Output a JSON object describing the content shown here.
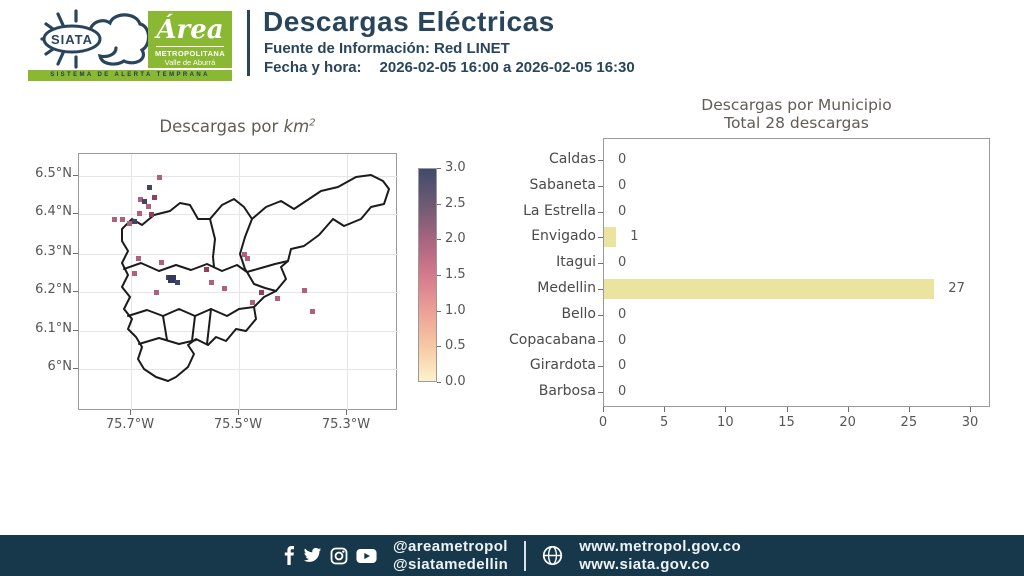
{
  "header": {
    "siata_logo_text": "SIATA",
    "siata_tagline": "SISTEMA DE ALERTA TEMPRANA",
    "area_logo": {
      "line1": "Área",
      "line2": "METROPOLITANA",
      "line3": "Valle de Aburrá"
    },
    "title": "Descargas Eléctricas",
    "source_line": "Fuente de Información: Red LINET",
    "datetime_label": "Fecha y hora:",
    "datetime_value": "2026-02-05 16:00 a 2026-02-05 16:30"
  },
  "colors": {
    "accent_navy": "#29455c",
    "brand_green": "#8ab832",
    "bar_yellow": "#eae4a0",
    "footer_navy": "#16384a",
    "point_pink": "#b0607c",
    "point_red": "#8f3f60",
    "point_dark": "#3f4566"
  },
  "chart_data": [
    {
      "type": "heatmap",
      "title_prefix": "Descargas por ",
      "title_unit_base": "km",
      "title_unit_exp": "2",
      "yticks": [
        "6.5°N",
        "6.4°N",
        "6.3°N",
        "6.2°N",
        "6.1°N",
        "6°N"
      ],
      "xticks": [
        "75.7°W",
        "75.5°W",
        "75.3°W"
      ],
      "colorbar": {
        "min": 0.0,
        "max": 3.0,
        "ticks": [
          "3.0",
          "2.5",
          "2.0",
          "1.5",
          "1.0",
          "0.5",
          "0.0"
        ]
      },
      "points": [
        [
          80,
          23,
          "p"
        ],
        [
          70,
          33,
          "d"
        ],
        [
          61,
          45,
          "p"
        ],
        [
          65,
          47,
          "d"
        ],
        [
          75,
          43,
          "r"
        ],
        [
          69,
          52,
          "p"
        ],
        [
          60,
          59,
          "p"
        ],
        [
          72,
          60,
          "r"
        ],
        [
          35,
          65,
          "p"
        ],
        [
          43,
          65,
          "p"
        ],
        [
          55,
          67,
          "d"
        ],
        [
          50,
          69,
          "p"
        ],
        [
          165,
          100,
          "p"
        ],
        [
          168,
          104,
          "p"
        ],
        [
          59,
          104,
          "p"
        ],
        [
          82,
          108,
          "p"
        ],
        [
          127,
          115,
          "r"
        ],
        [
          55,
          119,
          "p"
        ],
        [
          89,
          123,
          "d"
        ],
        [
          93,
          125,
          "D"
        ],
        [
          98,
          128,
          "d"
        ],
        [
          132,
          128,
          "p"
        ],
        [
          145,
          134,
          "p"
        ],
        [
          77,
          138,
          "p"
        ],
        [
          182,
          138,
          "r"
        ],
        [
          198,
          144,
          "p"
        ],
        [
          225,
          136,
          "p"
        ],
        [
          173,
          148,
          "p"
        ],
        [
          233,
          157,
          "p"
        ]
      ]
    },
    {
      "type": "bar",
      "orientation": "horizontal",
      "title": "Descargas por Municipio",
      "subtitle": "Total 28 descargas",
      "total": 28,
      "categories": [
        "Caldas",
        "Sabaneta",
        "La Estrella",
        "Envigado",
        "Itagui",
        "Medellin",
        "Bello",
        "Copacabana",
        "Girardota",
        "Barbosa"
      ],
      "values": [
        0,
        0,
        0,
        1,
        0,
        27,
        0,
        0,
        0,
        0
      ],
      "xticks": [
        0,
        5,
        10,
        15,
        20,
        25,
        30
      ],
      "xlim": [
        0,
        31.6
      ],
      "legend": null,
      "grid": false
    }
  ],
  "footer": {
    "handle1": "@areametropol",
    "handle2": "@siatamedellin",
    "url1": "www.metropol.gov.co",
    "url2": "www.siata.gov.co"
  }
}
